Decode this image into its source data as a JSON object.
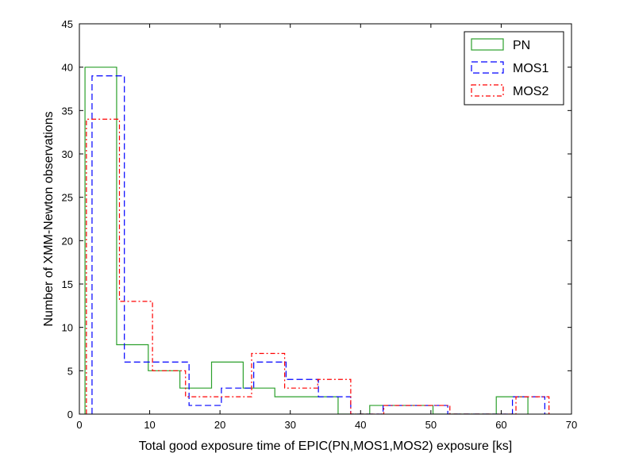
{
  "chart_data": {
    "type": "histogram",
    "xlabel": "Total good exposure time of EPIC(PN,MOS1,MOS2) exposure [ks]",
    "ylabel": "Number of XMM-Newton observations",
    "xlim": [
      0,
      70
    ],
    "ylim": [
      0,
      45
    ],
    "xticks": [
      0,
      10,
      20,
      30,
      40,
      50,
      60,
      70
    ],
    "yticks": [
      0,
      5,
      10,
      15,
      20,
      25,
      30,
      35,
      40,
      45
    ],
    "grid": false,
    "legend_position": "top-right",
    "series": [
      {
        "name": "PN",
        "color": "#2ca02c",
        "linestyle": "solid",
        "bin_edges": [
          0.8,
          5.3,
          9.8,
          14.3,
          18.8,
          23.3,
          27.8,
          32.3,
          36.8,
          41.3,
          45.8,
          50.3,
          54.8,
          59.3,
          63.8
        ],
        "counts": [
          40,
          8,
          5,
          3,
          6,
          3,
          2,
          2,
          0,
          1,
          1,
          0,
          0,
          2
        ]
      },
      {
        "name": "MOS1",
        "color": "#0000ff",
        "linestyle": "dashed",
        "bin_edges": [
          1.8,
          6.4,
          11.0,
          15.6,
          20.2,
          24.8,
          29.4,
          34.0,
          38.6,
          43.2,
          47.8,
          52.4,
          57.0,
          61.6,
          66.2
        ],
        "counts": [
          39,
          6,
          6,
          1,
          3,
          6,
          4,
          2,
          0,
          1,
          1,
          0,
          0,
          2
        ]
      },
      {
        "name": "MOS2",
        "color": "#ff0000",
        "linestyle": "dashdot",
        "bin_edges": [
          1.0,
          5.7,
          10.4,
          15.1,
          19.8,
          24.5,
          29.2,
          33.9,
          38.6,
          43.3,
          48.0,
          52.7,
          57.4,
          62.1,
          66.8
        ],
        "counts": [
          34,
          13,
          5,
          2,
          2,
          7,
          3,
          4,
          0,
          1,
          1,
          0,
          0,
          2
        ]
      }
    ]
  }
}
